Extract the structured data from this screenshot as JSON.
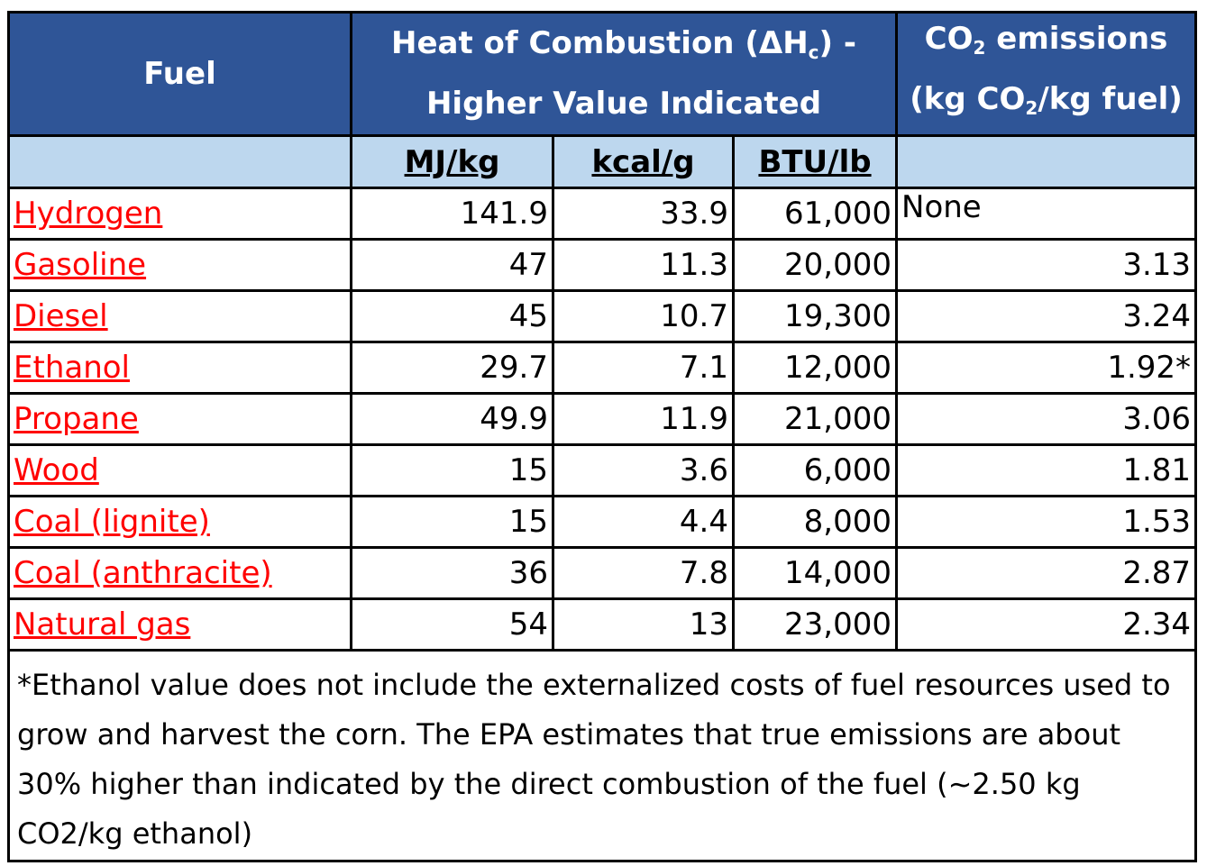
{
  "header": {
    "fuel": "Fuel",
    "heat_line1_a": "Heat of Combustion (ΔH",
    "heat_line1_sub": "c",
    "heat_line1_b": ") -",
    "heat_line2": "Higher Value Indicated",
    "co2_line1_a": "CO",
    "co2_line1_sub": "2",
    "co2_line1_b": " emissions",
    "co2_line2_a": "(kg CO",
    "co2_line2_sub": "2",
    "co2_line2_b": "/kg fuel)"
  },
  "units": {
    "mjkg": "MJ/kg",
    "kcalg": "kcal/g",
    "btulb": "BTU/lb"
  },
  "rows": [
    {
      "fuel": "Hydrogen",
      "mj": "141.9",
      "kcal": "33.9",
      "btu": "61,000",
      "co2": "None"
    },
    {
      "fuel": "Gasoline",
      "mj": "47",
      "kcal": "11.3",
      "btu": "20,000",
      "co2": "3.13"
    },
    {
      "fuel": "Diesel",
      "mj": "45",
      "kcal": "10.7",
      "btu": "19,300",
      "co2": "3.24"
    },
    {
      "fuel": "Ethanol",
      "mj": "29.7",
      "kcal": "7.1",
      "btu": "12,000",
      "co2": "1.92*"
    },
    {
      "fuel": "Propane",
      "mj": "49.9",
      "kcal": "11.9",
      "btu": "21,000",
      "co2": "3.06"
    },
    {
      "fuel": "Wood",
      "mj": "15",
      "kcal": "3.6",
      "btu": "6,000",
      "co2": "1.81"
    },
    {
      "fuel": "Coal (lignite)",
      "mj": "15",
      "kcal": "4.4",
      "btu": "8,000",
      "co2": "1.53"
    },
    {
      "fuel": "Coal (anthracite)",
      "mj": "36",
      "kcal": "7.8",
      "btu": "14,000",
      "co2": "2.87"
    },
    {
      "fuel": "Natural gas",
      "mj": "54",
      "kcal": "13",
      "btu": "23,000",
      "co2": "2.34"
    }
  ],
  "footnote": "*Ethanol value does not include the externalized costs of fuel resources used to grow and harvest the corn.  The EPA estimates that true emissions are about 30% higher than indicated by the direct combustion of the fuel (~2.50 kg CO2/kg ethanol)",
  "colors": {
    "header_bg": "#2f5597",
    "units_bg": "#bdd7ee",
    "link": "#ff0000"
  }
}
